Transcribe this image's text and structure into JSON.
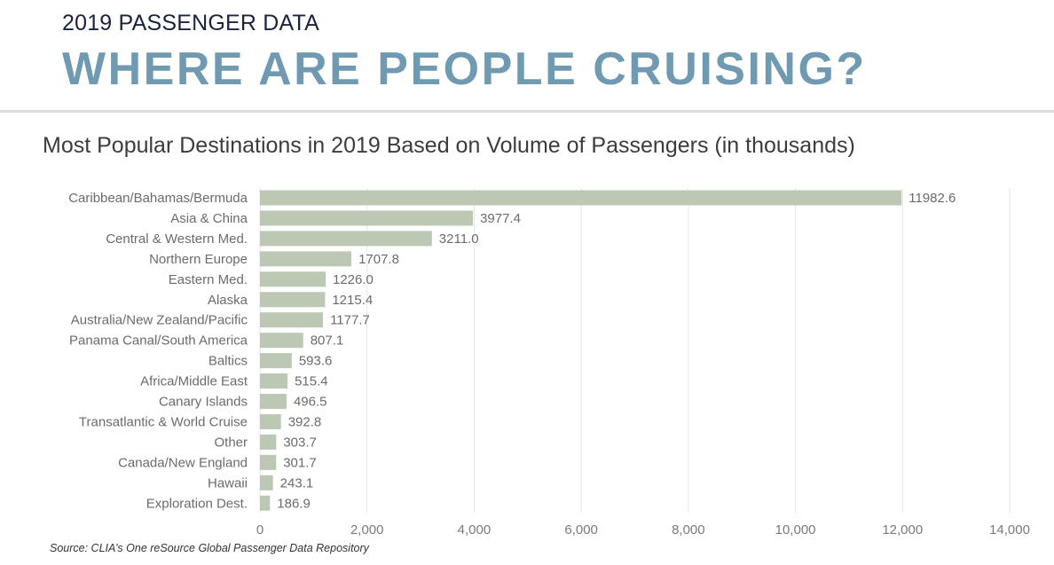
{
  "header": {
    "eyebrow": "2019 PASSENGER DATA",
    "title": "WHERE ARE PEOPLE CRUISING?"
  },
  "source_note": "Source: CLIA’s One reSource Global Passenger Data Repository",
  "colors": {
    "bar": "#bcc8b3",
    "title_accent": "#6f9ab1",
    "eyebrow": "#1a2340",
    "gridline": "#e6e6e6"
  },
  "chart_data": {
    "type": "bar",
    "orientation": "horizontal",
    "title": "Most Popular Destinations in 2019 Based on Volume of Passengers (in thousands)",
    "xlabel": "",
    "ylabel": "",
    "xlim": [
      0,
      14000
    ],
    "xticks": [
      0,
      2000,
      4000,
      6000,
      8000,
      10000,
      12000,
      14000
    ],
    "xtick_labels": [
      "0",
      "2,000",
      "4,000",
      "6,000",
      "8,000",
      "10,000",
      "12,000",
      "14,000"
    ],
    "grid": "vertical",
    "legend": "none",
    "categories": [
      "Caribbean/Bahamas/Bermuda",
      "Asia & China",
      "Central & Western Med.",
      "Northern Europe",
      "Eastern Med.",
      "Alaska",
      "Australia/New Zealand/Pacific",
      "Panama Canal/South America",
      "Baltics",
      "Africa/Middle East",
      "Canary Islands",
      "Transatlantic & World Cruise",
      "Other",
      "Canada/New England",
      "Hawaii",
      "Exploration Dest."
    ],
    "values": [
      11982.6,
      3977.4,
      3211.0,
      1707.8,
      1226.0,
      1215.4,
      1177.7,
      807.1,
      593.6,
      515.4,
      496.5,
      392.8,
      303.7,
      301.7,
      243.1,
      186.9
    ],
    "value_labels": [
      "11982.6",
      "3977.4",
      "3211.0",
      "1707.8",
      "1226.0",
      "1215.4",
      "1177.7",
      "807.1",
      "593.6",
      "515.4",
      "496.5",
      "392.8",
      "303.7",
      "301.7",
      "243.1",
      "186.9"
    ]
  }
}
